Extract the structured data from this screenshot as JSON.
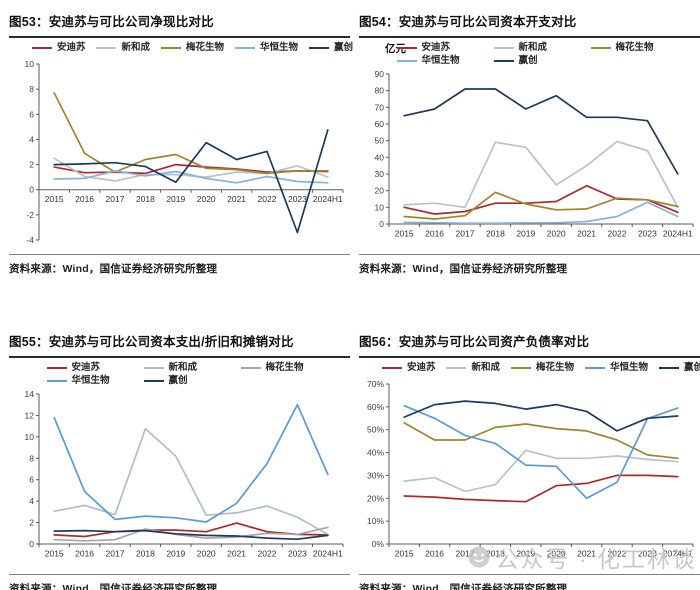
{
  "watermark": {
    "label": "公众号 · 化工林谈",
    "icon": "wechat-account-logo"
  },
  "chart_data": [
    {
      "id": "fig53",
      "type": "line",
      "title": "图53：安迪苏与可比公司净现比对比",
      "unit_label": "",
      "source": "资料来源：Wind，国信证券经济研究所整理",
      "legend_position": "top",
      "legend_rows": 1,
      "grid": false,
      "categories": [
        "2015",
        "2016",
        "2017",
        "2018",
        "2019",
        "2020",
        "2021",
        "2022",
        "2023",
        "2024H1"
      ],
      "ylim": [
        -4,
        10
      ],
      "ystep": 2,
      "percent": false,
      "series": [
        {
          "name": "安迪苏",
          "color": "#b2282a",
          "values": [
            1.8,
            1.35,
            1.4,
            1.3,
            2.0,
            1.8,
            1.65,
            1.4,
            1.5,
            1.45
          ]
        },
        {
          "name": "新和成",
          "color": "#b6c3cd",
          "values": [
            2.5,
            1.05,
            0.7,
            1.2,
            1.2,
            1.0,
            1.4,
            1.3,
            1.9,
            1.0
          ]
        },
        {
          "name": "梅花生物",
          "color": "#9d862e",
          "values": [
            7.7,
            2.9,
            1.4,
            2.4,
            2.8,
            1.7,
            1.6,
            1.3,
            1.5,
            1.5
          ]
        },
        {
          "name": "华恒生物",
          "color": "#85b4db",
          "values": [
            0.85,
            0.9,
            1.5,
            1.1,
            1.45,
            0.9,
            0.55,
            1.05,
            0.65,
            0.55
          ]
        },
        {
          "name": "赢创",
          "color": "#1f3a5c",
          "values": [
            2.0,
            2.05,
            2.15,
            1.85,
            0.6,
            3.75,
            2.4,
            3.05,
            -3.4,
            4.75
          ]
        }
      ]
    },
    {
      "id": "fig54",
      "type": "line",
      "title": "图54：安迪苏与可比公司资本开支对比",
      "unit_label": "亿元",
      "source": "资料来源：Wind，国信证券经济研究所整理",
      "legend_position": "top",
      "legend_rows": 2,
      "grid": false,
      "categories": [
        "2015",
        "2016",
        "2017",
        "2018",
        "2019",
        "2020",
        "2021",
        "2022",
        "2023",
        "2024H1"
      ],
      "ylim": [
        0,
        90
      ],
      "ystep": 10,
      "percent": false,
      "series": [
        {
          "name": "安迪苏",
          "color": "#b2282a",
          "values": [
            10,
            6,
            7.5,
            12.5,
            12.5,
            13.5,
            23,
            15,
            14.5,
            7
          ]
        },
        {
          "name": "新和成",
          "color": "#b6c3cd",
          "values": [
            11.5,
            12.5,
            10,
            49,
            46,
            23.5,
            35,
            49.5,
            44,
            10
          ]
        },
        {
          "name": "梅花生物",
          "color": "#9d862e",
          "values": [
            4.5,
            3,
            5,
            19,
            12,
            8.5,
            9,
            15.5,
            14.5,
            10.5
          ]
        },
        {
          "name": "华恒生物",
          "color": "#85b4db",
          "values": [
            1,
            0.8,
            0.5,
            0.5,
            0.7,
            0.7,
            1.5,
            4.5,
            13,
            4.5
          ]
        },
        {
          "name": "赢创",
          "color": "#1f3a5c",
          "values": [
            65,
            69,
            81,
            81,
            69,
            77,
            64,
            64,
            62,
            30
          ]
        }
      ]
    },
    {
      "id": "fig55",
      "type": "line",
      "title": "图55：安迪苏与可比公司资本支出/折旧和摊销对比",
      "unit_label": "",
      "source": "资料来源：Wind，国信证券经济研究所整理",
      "legend_position": "top",
      "legend_rows": 2,
      "grid": false,
      "categories": [
        "2015",
        "2016",
        "2017",
        "2018",
        "2019",
        "2020",
        "2021",
        "2022",
        "2023",
        "2024H1"
      ],
      "ylim": [
        0,
        14
      ],
      "ystep": 2,
      "percent": false,
      "series": [
        {
          "name": "安迪苏",
          "color": "#b2282a",
          "values": [
            0.85,
            0.7,
            1.15,
            1.3,
            1.3,
            1.15,
            1.95,
            1.15,
            0.9,
            0.85
          ]
        },
        {
          "name": "新和成",
          "color": "#aebfcb",
          "values": [
            3.05,
            3.6,
            2.75,
            10.75,
            8.2,
            2.7,
            2.9,
            3.55,
            2.5,
            0.9
          ]
        },
        {
          "name": "梅花生物",
          "color": "#a6a6a6",
          "values": [
            0.4,
            0.3,
            0.4,
            1.4,
            0.9,
            0.55,
            0.65,
            1.0,
            0.9,
            1.55
          ]
        },
        {
          "name": "华恒生物",
          "color": "#5b9bd5",
          "values": [
            11.8,
            4.9,
            2.3,
            2.6,
            2.45,
            2.05,
            3.8,
            7.5,
            13,
            6.5
          ]
        },
        {
          "name": "赢创",
          "color": "#1f3a5c",
          "values": [
            1.2,
            1.25,
            1.15,
            1.25,
            0.95,
            0.8,
            0.75,
            0.55,
            0.45,
            0.8
          ]
        }
      ]
    },
    {
      "id": "fig56",
      "type": "line",
      "title": "图56：安迪苏与可比公司资产负债率对比",
      "unit_label": "",
      "source": "资料来源：Wind，国信证券经济研究所整理",
      "legend_position": "top",
      "legend_rows": 1,
      "grid": false,
      "categories": [
        "2015",
        "2016",
        "2017",
        "2018",
        "2019",
        "2020",
        "2021",
        "2022",
        "2023",
        "2024H1"
      ],
      "ylim": [
        0,
        70
      ],
      "ystep": 10,
      "percent": true,
      "series": [
        {
          "name": "安迪苏",
          "color": "#b2282a",
          "values": [
            21,
            20.5,
            19.5,
            19,
            18.5,
            25.5,
            26.5,
            30,
            30,
            29.5
          ]
        },
        {
          "name": "新和成",
          "color": "#b6c3cd",
          "values": [
            27.5,
            29,
            23,
            26,
            41,
            37.5,
            37.5,
            38.5,
            37,
            36
          ]
        },
        {
          "name": "梅花生物",
          "color": "#9d862e",
          "values": [
            53,
            45.5,
            45.5,
            51,
            52.5,
            50.5,
            49.5,
            45.5,
            39,
            37.5
          ]
        },
        {
          "name": "华恒生物",
          "color": "#5b9bd5",
          "values": [
            60.5,
            55,
            47.5,
            44,
            34.5,
            34,
            20,
            27,
            54.8,
            59.5
          ]
        },
        {
          "name": "赢创",
          "color": "#1f3a5c",
          "values": [
            55.5,
            61,
            62.5,
            61.5,
            59,
            61,
            58,
            49.5,
            55,
            56
          ]
        }
      ]
    }
  ]
}
